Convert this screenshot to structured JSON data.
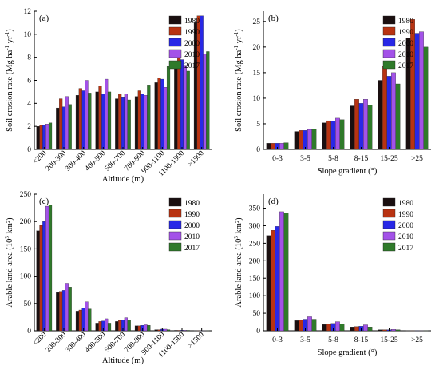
{
  "figure": {
    "background": "#ffffff"
  },
  "series_colors": {
    "1980": "#1a0f10",
    "1990": "#b83312",
    "2000": "#2828e6",
    "2010": "#a352e8",
    "2017": "#2f7a2a"
  },
  "chart_data": [
    {
      "type": "bar",
      "panel_label": "(a)",
      "title": "",
      "xlabel": "Altitude (m)",
      "ylabel": "Soil erosion rate (Mg ha⁻¹ yr⁻¹)",
      "ylim": [
        0,
        12
      ],
      "yticks": [
        "0",
        "2",
        "4",
        "6",
        "8",
        "10",
        "12"
      ],
      "categories": [
        "<200",
        "200-300",
        "300-400",
        "400-500",
        "500-700",
        "700-900",
        "900-1100",
        "1100-1500",
        ">1500"
      ],
      "legend_position": "top-right",
      "series": [
        {
          "name": "1980",
          "values": [
            2.0,
            3.6,
            4.7,
            5.0,
            4.4,
            4.6,
            5.8,
            7.6,
            11.0
          ]
        },
        {
          "name": "1990",
          "values": [
            2.1,
            4.4,
            5.3,
            5.5,
            4.8,
            5.1,
            6.2,
            8.0,
            11.6
          ]
        },
        {
          "name": "2000",
          "values": [
            2.1,
            3.7,
            5.1,
            4.8,
            4.5,
            4.8,
            6.1,
            7.8,
            11.6
          ]
        },
        {
          "name": "2010",
          "values": [
            2.2,
            4.6,
            6.0,
            6.1,
            4.8,
            4.7,
            5.4,
            7.3,
            8.3
          ]
        },
        {
          "name": "2017",
          "values": [
            2.3,
            3.9,
            4.9,
            5.0,
            4.3,
            5.6,
            7.2,
            6.8,
            8.5
          ]
        }
      ]
    },
    {
      "type": "bar",
      "panel_label": "(b)",
      "title": "",
      "xlabel": "Slope gradient (°)",
      "ylabel": "Soil erosion rate (Mg ha⁻¹ yr⁻¹)",
      "ylim": [
        0,
        27
      ],
      "yticks": [
        "0",
        "5",
        "10",
        "15",
        "20",
        "25"
      ],
      "categories": [
        "0-3",
        "3-5",
        "5-8",
        "8-15",
        "15-25",
        ">25"
      ],
      "legend_position": "top-right",
      "series": [
        {
          "name": "1980",
          "values": [
            1.2,
            3.5,
            5.2,
            8.5,
            13.5,
            21.8
          ]
        },
        {
          "name": "1990",
          "values": [
            1.2,
            3.7,
            5.6,
            9.8,
            16.2,
            25.4
          ]
        },
        {
          "name": "2000",
          "values": [
            1.2,
            3.7,
            5.5,
            9.0,
            14.3,
            22.7
          ]
        },
        {
          "name": "2010",
          "values": [
            1.2,
            3.9,
            6.1,
            9.8,
            15.0,
            23.0
          ]
        },
        {
          "name": "2017",
          "values": [
            1.3,
            4.0,
            5.8,
            8.7,
            12.8,
            20.0
          ]
        }
      ]
    },
    {
      "type": "bar",
      "panel_label": "(c)",
      "title": "",
      "xlabel": "Altitude (m)",
      "ylabel": "Arable land area (10³ km²)",
      "ylim": [
        0,
        250
      ],
      "yticks": [
        "0",
        "50",
        "100",
        "150",
        "200",
        "250"
      ],
      "categories": [
        "<200",
        "200-300",
        "300-400",
        "400-500",
        "500-700",
        "700-900",
        "900-1100",
        "1100-1500",
        ">1500"
      ],
      "legend_position": "top-right",
      "series": [
        {
          "name": "1980",
          "values": [
            183,
            70,
            36,
            14,
            17,
            9,
            2,
            0.8,
            0.3
          ]
        },
        {
          "name": "1990",
          "values": [
            193,
            72,
            38,
            17,
            19,
            9,
            2,
            0.8,
            0.3
          ]
        },
        {
          "name": "2000",
          "values": [
            200,
            74,
            42,
            18,
            20,
            10,
            3,
            0.9,
            0.3
          ]
        },
        {
          "name": "2010",
          "values": [
            228,
            87,
            53,
            22,
            24,
            11,
            3,
            1.0,
            0.4
          ]
        },
        {
          "name": "2017",
          "values": [
            230,
            80,
            40,
            14,
            20,
            10,
            2,
            0.8,
            0.3
          ]
        }
      ]
    },
    {
      "type": "bar",
      "panel_label": "(d)",
      "title": "",
      "xlabel": "Slope gradient (°)",
      "ylabel": "Arable land area (10³ km²)",
      "ylim": [
        0,
        390
      ],
      "yticks": [
        "0",
        "50",
        "100",
        "150",
        "200",
        "250",
        "300",
        "350"
      ],
      "categories": [
        "0-3",
        "3-5",
        "5-8",
        "8-15",
        "15-25",
        ">25"
      ],
      "legend_position": "top-right",
      "series": [
        {
          "name": "1980",
          "values": [
            272,
            29,
            18,
            11,
            3,
            0.5
          ]
        },
        {
          "name": "1990",
          "values": [
            287,
            31,
            20,
            12,
            3,
            0.5
          ]
        },
        {
          "name": "2000",
          "values": [
            298,
            33,
            21,
            13,
            3,
            0.5
          ]
        },
        {
          "name": "2010",
          "values": [
            340,
            40,
            26,
            17,
            4,
            0.6
          ]
        },
        {
          "name": "2017",
          "values": [
            337,
            33,
            19,
            11,
            3,
            0.5
          ]
        }
      ]
    }
  ]
}
